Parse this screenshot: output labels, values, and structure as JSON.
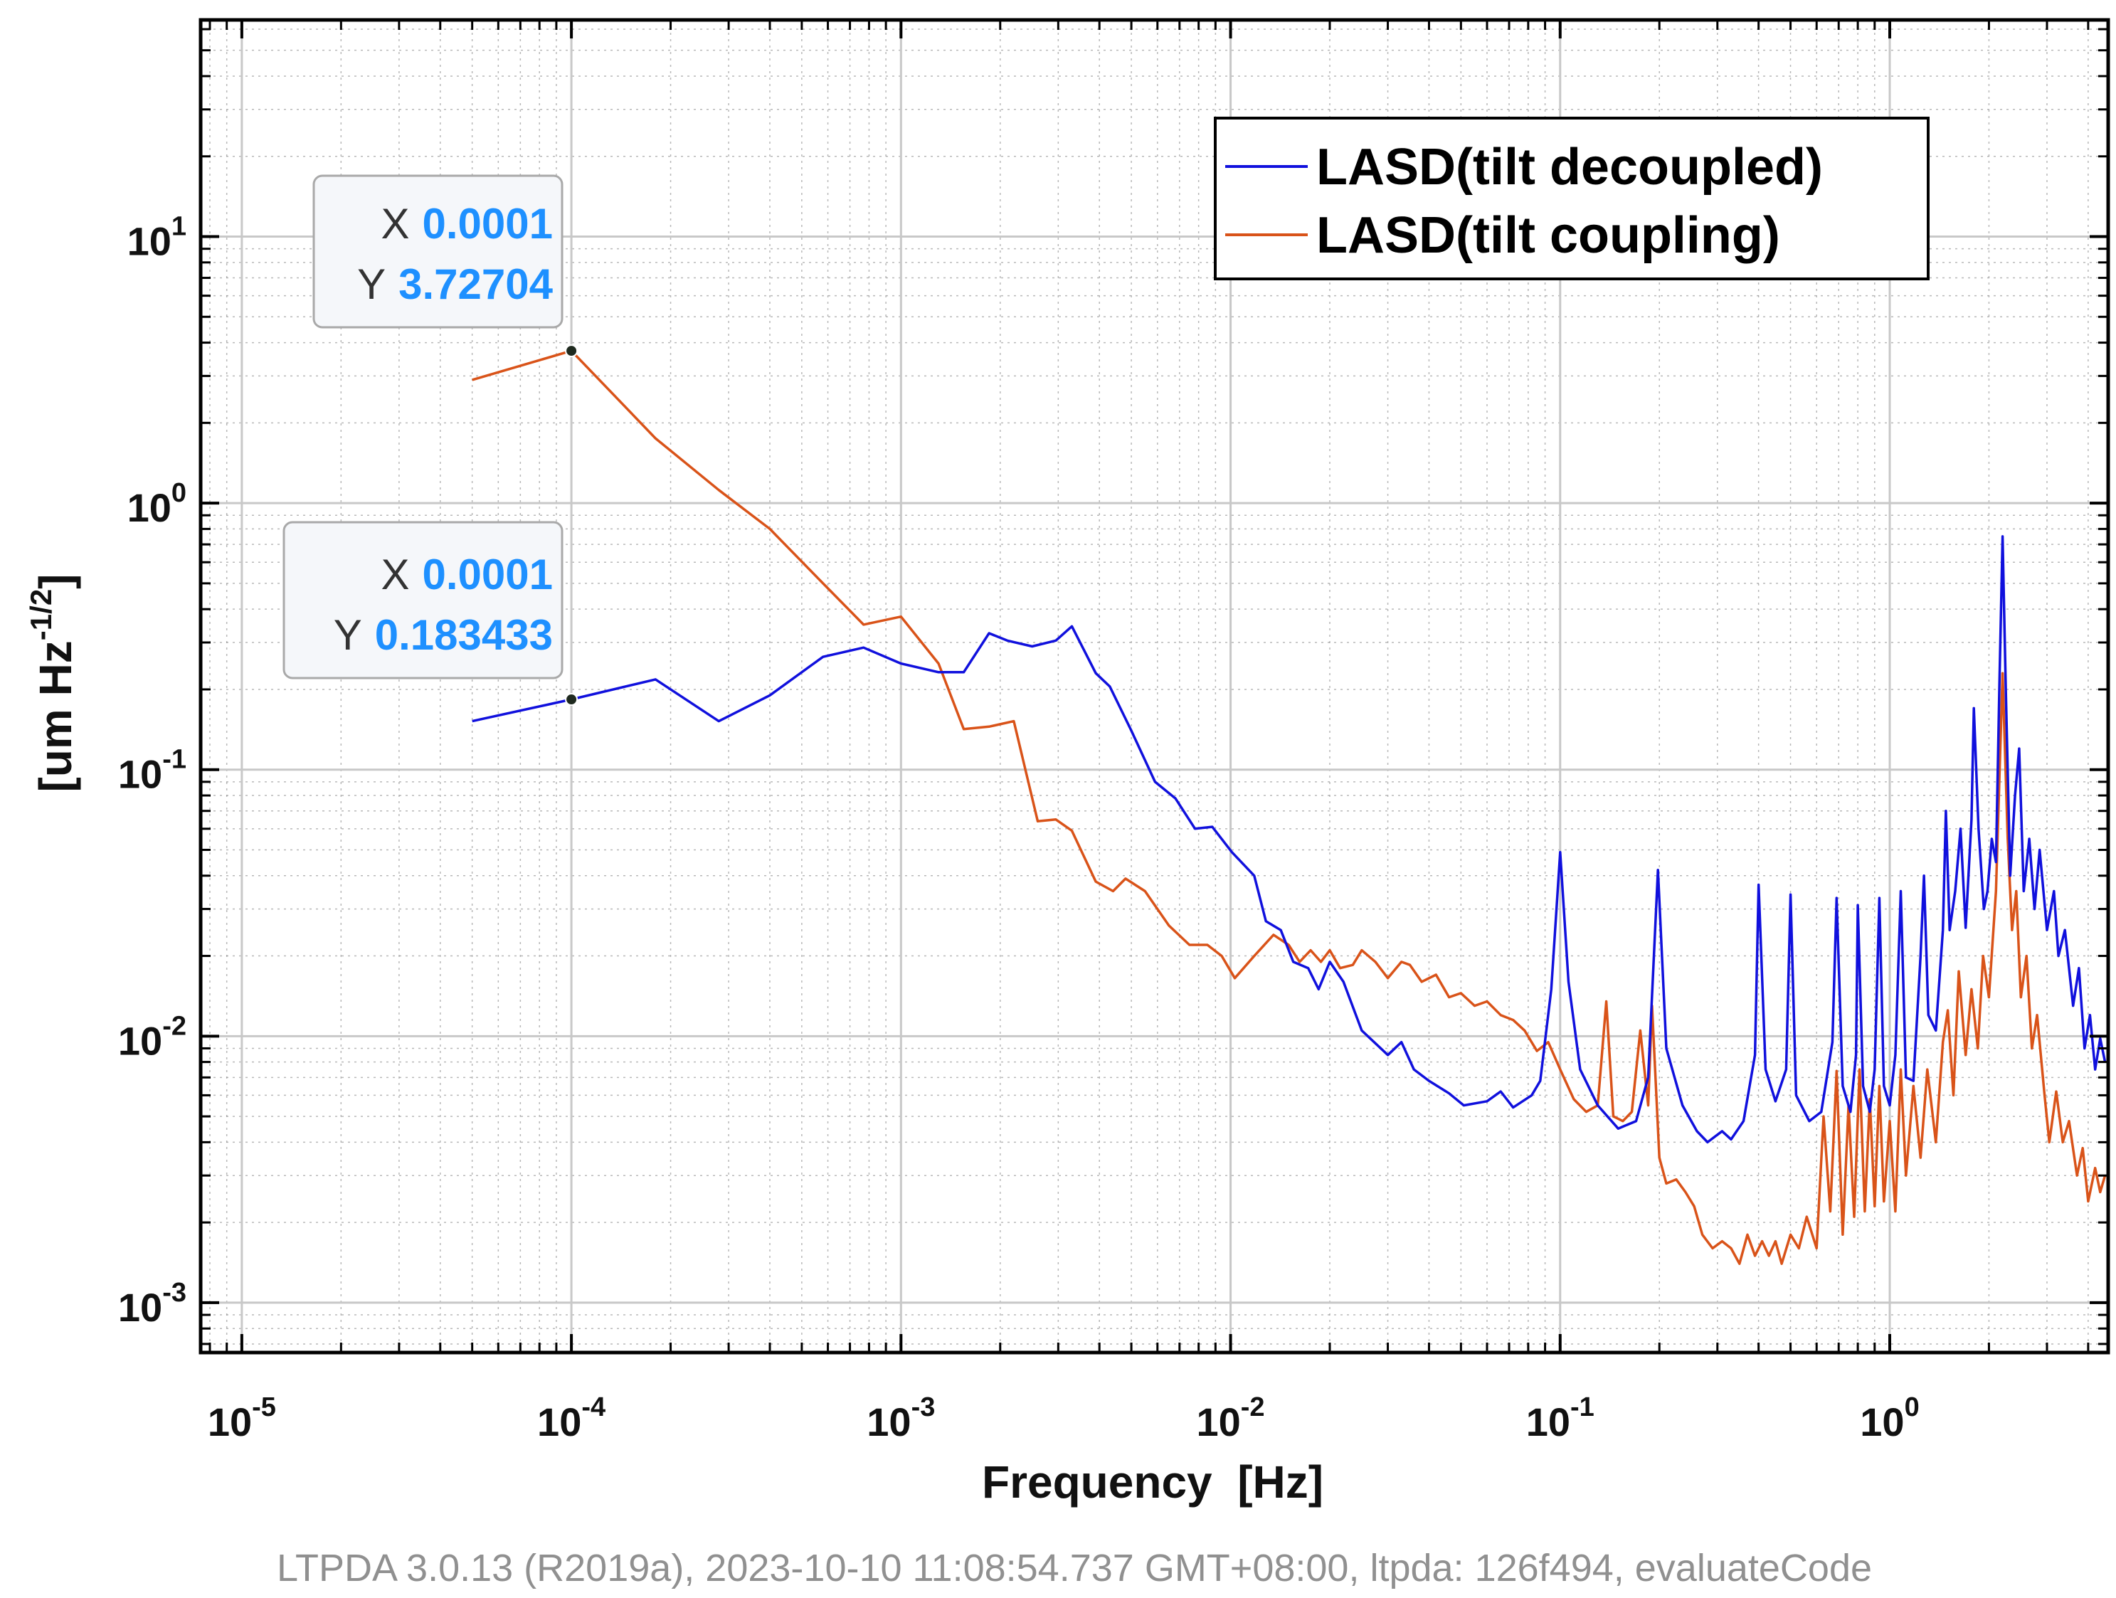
{
  "chart_data": {
    "type": "line",
    "title": "",
    "xlabel": "Frequency  [Hz]",
    "ylabel_main": "[um Hz",
    "ylabel_sup": "-1/2",
    "ylabel_close": "]",
    "xscale": "log",
    "yscale": "log",
    "xlim": [
      7.5e-06,
      4.6
    ],
    "ylim": [
      0.00065,
      65
    ],
    "grid": true,
    "minor_grid": true,
    "legend_position": "top-right",
    "x_ticks": [
      {
        "value": 1e-05,
        "base": "10",
        "exp": "-5"
      },
      {
        "value": 0.0001,
        "base": "10",
        "exp": "-4"
      },
      {
        "value": 0.001,
        "base": "10",
        "exp": "-3"
      },
      {
        "value": 0.01,
        "base": "10",
        "exp": "-2"
      },
      {
        "value": 0.1,
        "base": "10",
        "exp": "-1"
      },
      {
        "value": 1,
        "base": "10",
        "exp": "0"
      }
    ],
    "y_ticks": [
      {
        "value": 0.001,
        "base": "10",
        "exp": "-3"
      },
      {
        "value": 0.01,
        "base": "10",
        "exp": "-2"
      },
      {
        "value": 0.1,
        "base": "10",
        "exp": "-1"
      },
      {
        "value": 1,
        "base": "10",
        "exp": "0"
      },
      {
        "value": 10,
        "base": "10",
        "exp": "1"
      }
    ],
    "series": [
      {
        "name": "LASD(tilt decoupled)",
        "color": "#1010dd",
        "points": [
          [
            5e-05,
            0.152
          ],
          [
            0.0001,
            0.1834
          ],
          [
            0.00018,
            0.218
          ],
          [
            0.00028,
            0.152
          ],
          [
            0.0004,
            0.19
          ],
          [
            0.00058,
            0.265
          ],
          [
            0.00077,
            0.287
          ],
          [
            0.001,
            0.25
          ],
          [
            0.0013,
            0.232
          ],
          [
            0.00155,
            0.232
          ],
          [
            0.00185,
            0.325
          ],
          [
            0.0021,
            0.305
          ],
          [
            0.0025,
            0.29
          ],
          [
            0.00295,
            0.305
          ],
          [
            0.0033,
            0.345
          ],
          [
            0.0039,
            0.23
          ],
          [
            0.0043,
            0.205
          ],
          [
            0.005,
            0.14
          ],
          [
            0.0059,
            0.09
          ],
          [
            0.0068,
            0.078
          ],
          [
            0.0078,
            0.06
          ],
          [
            0.0088,
            0.061
          ],
          [
            0.0101,
            0.049
          ],
          [
            0.0118,
            0.04
          ],
          [
            0.0128,
            0.027
          ],
          [
            0.0142,
            0.025
          ],
          [
            0.0155,
            0.019
          ],
          [
            0.0172,
            0.018
          ],
          [
            0.0185,
            0.015
          ],
          [
            0.02,
            0.019
          ],
          [
            0.022,
            0.016
          ],
          [
            0.025,
            0.0105
          ],
          [
            0.03,
            0.0085
          ],
          [
            0.033,
            0.0095
          ],
          [
            0.036,
            0.0075
          ],
          [
            0.04,
            0.0068
          ],
          [
            0.046,
            0.0061
          ],
          [
            0.051,
            0.0055
          ],
          [
            0.06,
            0.0057
          ],
          [
            0.066,
            0.0062
          ],
          [
            0.072,
            0.0054
          ],
          [
            0.082,
            0.006
          ],
          [
            0.087,
            0.0068
          ],
          [
            0.094,
            0.015
          ],
          [
            0.1,
            0.049
          ],
          [
            0.106,
            0.016
          ],
          [
            0.115,
            0.0075
          ],
          [
            0.13,
            0.0055
          ],
          [
            0.15,
            0.0045
          ],
          [
            0.17,
            0.0048
          ],
          [
            0.185,
            0.007
          ],
          [
            0.198,
            0.042
          ],
          [
            0.21,
            0.009
          ],
          [
            0.235,
            0.0055
          ],
          [
            0.26,
            0.0044
          ],
          [
            0.28,
            0.004
          ],
          [
            0.31,
            0.0044
          ],
          [
            0.33,
            0.0041
          ],
          [
            0.36,
            0.0048
          ],
          [
            0.39,
            0.0085
          ],
          [
            0.4,
            0.037
          ],
          [
            0.42,
            0.0075
          ],
          [
            0.45,
            0.0057
          ],
          [
            0.485,
            0.0075
          ],
          [
            0.5,
            0.034
          ],
          [
            0.52,
            0.006
          ],
          [
            0.57,
            0.0048
          ],
          [
            0.62,
            0.0052
          ],
          [
            0.67,
            0.0095
          ],
          [
            0.69,
            0.033
          ],
          [
            0.72,
            0.0065
          ],
          [
            0.76,
            0.0052
          ],
          [
            0.79,
            0.0085
          ],
          [
            0.8,
            0.031
          ],
          [
            0.83,
            0.0065
          ],
          [
            0.87,
            0.0052
          ],
          [
            0.9,
            0.0075
          ],
          [
            0.93,
            0.033
          ],
          [
            0.96,
            0.0065
          ],
          [
            1.0,
            0.0055
          ],
          [
            1.04,
            0.0085
          ],
          [
            1.08,
            0.035
          ],
          [
            1.12,
            0.007
          ],
          [
            1.18,
            0.0068
          ],
          [
            1.24,
            0.02
          ],
          [
            1.27,
            0.04
          ],
          [
            1.31,
            0.012
          ],
          [
            1.38,
            0.0105
          ],
          [
            1.45,
            0.025
          ],
          [
            1.48,
            0.07
          ],
          [
            1.52,
            0.025
          ],
          [
            1.58,
            0.035
          ],
          [
            1.64,
            0.06
          ],
          [
            1.7,
            0.0255
          ],
          [
            1.77,
            0.065
          ],
          [
            1.8,
            0.17
          ],
          [
            1.86,
            0.06
          ],
          [
            1.93,
            0.03
          ],
          [
            1.98,
            0.035
          ],
          [
            2.04,
            0.055
          ],
          [
            2.1,
            0.045
          ],
          [
            2.15,
            0.2
          ],
          [
            2.2,
            0.75
          ],
          [
            2.25,
            0.2
          ],
          [
            2.32,
            0.04
          ],
          [
            2.4,
            0.08
          ],
          [
            2.47,
            0.12
          ],
          [
            2.55,
            0.035
          ],
          [
            2.65,
            0.055
          ],
          [
            2.75,
            0.03
          ],
          [
            2.85,
            0.05
          ],
          [
            3.0,
            0.025
          ],
          [
            3.15,
            0.035
          ],
          [
            3.25,
            0.02
          ],
          [
            3.4,
            0.025
          ],
          [
            3.6,
            0.013
          ],
          [
            3.75,
            0.018
          ],
          [
            3.9,
            0.009
          ],
          [
            4.05,
            0.012
          ],
          [
            4.2,
            0.0075
          ],
          [
            4.35,
            0.0098
          ],
          [
            4.5,
            0.008
          ]
        ]
      },
      {
        "name": "LASD(tilt coupling)",
        "color": "#d95319",
        "points": [
          [
            5e-05,
            2.9
          ],
          [
            0.0001,
            3.727
          ],
          [
            0.00018,
            1.75
          ],
          [
            0.00028,
            1.12
          ],
          [
            0.0004,
            0.8
          ],
          [
            0.00058,
            0.5
          ],
          [
            0.00077,
            0.35
          ],
          [
            0.001,
            0.375
          ],
          [
            0.0013,
            0.25
          ],
          [
            0.00155,
            0.142
          ],
          [
            0.00185,
            0.145
          ],
          [
            0.0022,
            0.152
          ],
          [
            0.0026,
            0.064
          ],
          [
            0.00295,
            0.065
          ],
          [
            0.0033,
            0.059
          ],
          [
            0.0039,
            0.038
          ],
          [
            0.0044,
            0.035
          ],
          [
            0.0048,
            0.039
          ],
          [
            0.0055,
            0.035
          ],
          [
            0.0065,
            0.026
          ],
          [
            0.0075,
            0.022
          ],
          [
            0.0085,
            0.022
          ],
          [
            0.0094,
            0.02
          ],
          [
            0.0103,
            0.0165
          ],
          [
            0.0118,
            0.02
          ],
          [
            0.0135,
            0.024
          ],
          [
            0.015,
            0.022
          ],
          [
            0.0162,
            0.019
          ],
          [
            0.0175,
            0.021
          ],
          [
            0.0188,
            0.019
          ],
          [
            0.02,
            0.021
          ],
          [
            0.0215,
            0.018
          ],
          [
            0.0235,
            0.0185
          ],
          [
            0.025,
            0.021
          ],
          [
            0.0275,
            0.019
          ],
          [
            0.03,
            0.0165
          ],
          [
            0.033,
            0.019
          ],
          [
            0.035,
            0.0185
          ],
          [
            0.038,
            0.016
          ],
          [
            0.042,
            0.017
          ],
          [
            0.046,
            0.014
          ],
          [
            0.05,
            0.0145
          ],
          [
            0.055,
            0.013
          ],
          [
            0.06,
            0.0135
          ],
          [
            0.066,
            0.012
          ],
          [
            0.072,
            0.0115
          ],
          [
            0.078,
            0.0105
          ],
          [
            0.085,
            0.0088
          ],
          [
            0.092,
            0.0095
          ],
          [
            0.1,
            0.0075
          ],
          [
            0.11,
            0.0058
          ],
          [
            0.12,
            0.0052
          ],
          [
            0.13,
            0.0055
          ],
          [
            0.138,
            0.0135
          ],
          [
            0.145,
            0.005
          ],
          [
            0.155,
            0.0048
          ],
          [
            0.165,
            0.0052
          ],
          [
            0.175,
            0.0105
          ],
          [
            0.185,
            0.0055
          ],
          [
            0.19,
            0.013
          ],
          [
            0.2,
            0.0035
          ],
          [
            0.21,
            0.0028
          ],
          [
            0.225,
            0.0029
          ],
          [
            0.24,
            0.0026
          ],
          [
            0.255,
            0.0023
          ],
          [
            0.27,
            0.0018
          ],
          [
            0.29,
            0.0016
          ],
          [
            0.31,
            0.0017
          ],
          [
            0.33,
            0.0016
          ],
          [
            0.35,
            0.0014
          ],
          [
            0.37,
            0.0018
          ],
          [
            0.39,
            0.0015
          ],
          [
            0.41,
            0.0017
          ],
          [
            0.43,
            0.0015
          ],
          [
            0.45,
            0.0017
          ],
          [
            0.47,
            0.0014
          ],
          [
            0.5,
            0.0018
          ],
          [
            0.53,
            0.0016
          ],
          [
            0.56,
            0.0021
          ],
          [
            0.6,
            0.0016
          ],
          [
            0.63,
            0.005
          ],
          [
            0.66,
            0.0022
          ],
          [
            0.69,
            0.0074
          ],
          [
            0.72,
            0.0018
          ],
          [
            0.75,
            0.0055
          ],
          [
            0.78,
            0.0021
          ],
          [
            0.81,
            0.0075
          ],
          [
            0.84,
            0.0022
          ],
          [
            0.87,
            0.0058
          ],
          [
            0.9,
            0.0023
          ],
          [
            0.93,
            0.0065
          ],
          [
            0.96,
            0.0024
          ],
          [
            1.0,
            0.0048
          ],
          [
            1.04,
            0.0022
          ],
          [
            1.08,
            0.0075
          ],
          [
            1.12,
            0.003
          ],
          [
            1.18,
            0.0065
          ],
          [
            1.24,
            0.0035
          ],
          [
            1.3,
            0.0075
          ],
          [
            1.38,
            0.004
          ],
          [
            1.45,
            0.0095
          ],
          [
            1.5,
            0.0125
          ],
          [
            1.56,
            0.006
          ],
          [
            1.62,
            0.0175
          ],
          [
            1.7,
            0.0085
          ],
          [
            1.77,
            0.015
          ],
          [
            1.85,
            0.009
          ],
          [
            1.92,
            0.02
          ],
          [
            2.0,
            0.014
          ],
          [
            2.1,
            0.035
          ],
          [
            2.2,
            0.23
          ],
          [
            2.28,
            0.055
          ],
          [
            2.35,
            0.025
          ],
          [
            2.42,
            0.035
          ],
          [
            2.5,
            0.014
          ],
          [
            2.6,
            0.02
          ],
          [
            2.7,
            0.009
          ],
          [
            2.8,
            0.012
          ],
          [
            2.95,
            0.006
          ],
          [
            3.05,
            0.004
          ],
          [
            3.2,
            0.0062
          ],
          [
            3.35,
            0.004
          ],
          [
            3.5,
            0.0048
          ],
          [
            3.7,
            0.003
          ],
          [
            3.85,
            0.0038
          ],
          [
            4.0,
            0.0024
          ],
          [
            4.2,
            0.0032
          ],
          [
            4.35,
            0.0026
          ],
          [
            4.5,
            0.003
          ]
        ]
      }
    ],
    "datatips": [
      {
        "x_key": "X",
        "x_text": "0.0001",
        "y_key": "Y",
        "y_text": "3.72704",
        "x": 0.0001,
        "y": 3.72704
      },
      {
        "x_key": "X",
        "x_text": "0.0001",
        "y_key": "Y",
        "y_text": "0.183433",
        "x": 0.0001,
        "y": 0.183433
      }
    ]
  },
  "footer": "LTPDA 3.0.13 (R2019a), 2023-10-10 11:08:54.737 GMT+08:00, ltpda: 126f494, evaluateCode"
}
